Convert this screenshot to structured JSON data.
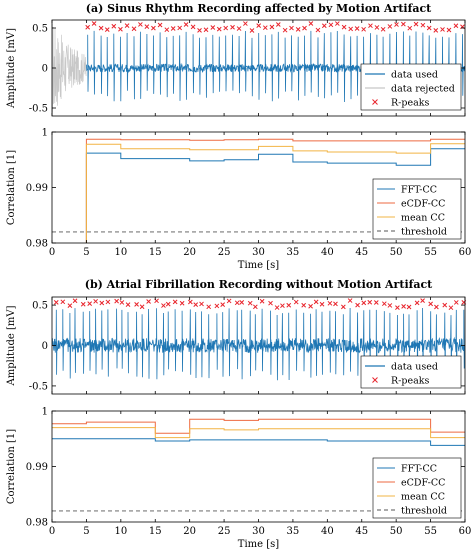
{
  "chart_data": [
    {
      "type": "line",
      "title": "(a) Sinus Rhythm Recording affected by Motion Artifact",
      "xlabel": "",
      "ylabel": "Amplitude [mV]",
      "xlim": [
        0,
        60
      ],
      "ylim": [
        -0.6,
        0.6
      ],
      "yticks": [
        "-0.5",
        "0",
        "0.5"
      ],
      "grid": false,
      "legend_position": "right-middle",
      "series": [
        {
          "name": "data used",
          "color": "#1f77b4",
          "x_range": [
            5,
            60
          ]
        },
        {
          "name": "data rejected",
          "color": "#c8c8c8",
          "x_range": [
            0,
            5
          ]
        },
        {
          "name": "R-peaks",
          "color": "#e8232b",
          "marker": "x",
          "approx_value": 0.45,
          "count": 58,
          "x_range": [
            5.2,
            59.6
          ]
        }
      ]
    },
    {
      "type": "line",
      "title": "",
      "xlabel": "Time [s]",
      "ylabel": "Correlation [1]",
      "xlim": [
        0,
        60
      ],
      "ylim": [
        0.98,
        1.0
      ],
      "xticks": [
        "0",
        "5",
        "10",
        "15",
        "20",
        "25",
        "30",
        "35",
        "40",
        "45",
        "50",
        "55",
        "60"
      ],
      "yticks": [
        "0.98",
        "0.99",
        "1"
      ],
      "legend_position": "bottom-right",
      "series": [
        {
          "name": "FFT-CC",
          "color": "#1f77b4",
          "x": [
            5,
            10,
            15,
            20,
            25,
            30,
            35,
            40,
            45,
            50,
            55,
            60
          ],
          "y": [
            0.9962,
            0.9952,
            0.9952,
            0.9948,
            0.995,
            0.996,
            0.9946,
            0.9944,
            0.9944,
            0.994,
            0.997,
            0.997
          ]
        },
        {
          "name": "eCDF-CC",
          "color": "#ee6a41",
          "x": [
            5,
            10,
            15,
            20,
            25,
            30,
            35,
            40,
            45,
            50,
            55,
            60
          ],
          "y": [
            0.9987,
            0.9986,
            0.9986,
            0.9985,
            0.9986,
            0.9987,
            0.9984,
            0.9984,
            0.9984,
            0.9984,
            0.9987,
            0.9987
          ]
        },
        {
          "name": "mean CC",
          "color": "#f2b444",
          "x": [
            5,
            10,
            15,
            20,
            25,
            30,
            35,
            40,
            45,
            50,
            55,
            60
          ],
          "y": [
            0.9978,
            0.997,
            0.997,
            0.9968,
            0.9968,
            0.9974,
            0.9966,
            0.9964,
            0.9964,
            0.9962,
            0.9979,
            0.9979
          ]
        },
        {
          "name": "threshold",
          "color": "#555555",
          "dash": true,
          "y": 0.982
        }
      ]
    },
    {
      "type": "line",
      "title": "(b) Atrial Fibrillation Recording without Motion Artifact",
      "xlabel": "",
      "ylabel": "Amplitude [mV]",
      "xlim": [
        0,
        60
      ],
      "ylim": [
        -0.6,
        0.6
      ],
      "yticks": [
        "-0.5",
        "0",
        "0.5"
      ],
      "legend_position": "right-lower",
      "series": [
        {
          "name": "data used",
          "color": "#1f77b4",
          "x_range": [
            0,
            60
          ]
        },
        {
          "name": "R-peaks",
          "color": "#e8232b",
          "marker": "x",
          "approx_value": 0.45,
          "count": 62,
          "x_range": [
            0.5,
            59.8
          ]
        }
      ]
    },
    {
      "type": "line",
      "title": "",
      "xlabel": "Time [s]",
      "ylabel": "Correlation [1]",
      "xlim": [
        0,
        60
      ],
      "ylim": [
        0.98,
        1.0
      ],
      "xticks": [
        "0",
        "5",
        "10",
        "15",
        "20",
        "25",
        "30",
        "35",
        "40",
        "45",
        "50",
        "55",
        "60"
      ],
      "yticks": [
        "0.98",
        "0.99",
        "1"
      ],
      "legend_position": "bottom-right",
      "series": [
        {
          "name": "FFT-CC",
          "color": "#1f77b4",
          "x": [
            0,
            5,
            10,
            15,
            20,
            25,
            30,
            35,
            40,
            45,
            50,
            55,
            60
          ],
          "y": [
            0.995,
            0.995,
            0.995,
            0.9946,
            0.9948,
            0.9948,
            0.9948,
            0.9948,
            0.9946,
            0.9946,
            0.9946,
            0.9938,
            0.9938
          ]
        },
        {
          "name": "eCDF-CC",
          "color": "#ee6a41",
          "x": [
            0,
            5,
            10,
            15,
            20,
            25,
            30,
            35,
            40,
            45,
            50,
            55,
            60
          ],
          "y": [
            0.9977,
            0.998,
            0.998,
            0.996,
            0.9985,
            0.9983,
            0.9985,
            0.9985,
            0.9985,
            0.9985,
            0.9985,
            0.9962,
            0.9962
          ]
        },
        {
          "name": "mean CC",
          "color": "#f2b444",
          "x": [
            0,
            5,
            10,
            15,
            20,
            25,
            30,
            35,
            40,
            45,
            50,
            55,
            60
          ],
          "y": [
            0.997,
            0.997,
            0.997,
            0.9952,
            0.9968,
            0.9966,
            0.9968,
            0.9968,
            0.9968,
            0.9968,
            0.9968,
            0.9952,
            0.9952
          ]
        },
        {
          "name": "threshold",
          "color": "#555555",
          "dash": true,
          "y": 0.982
        }
      ]
    }
  ]
}
